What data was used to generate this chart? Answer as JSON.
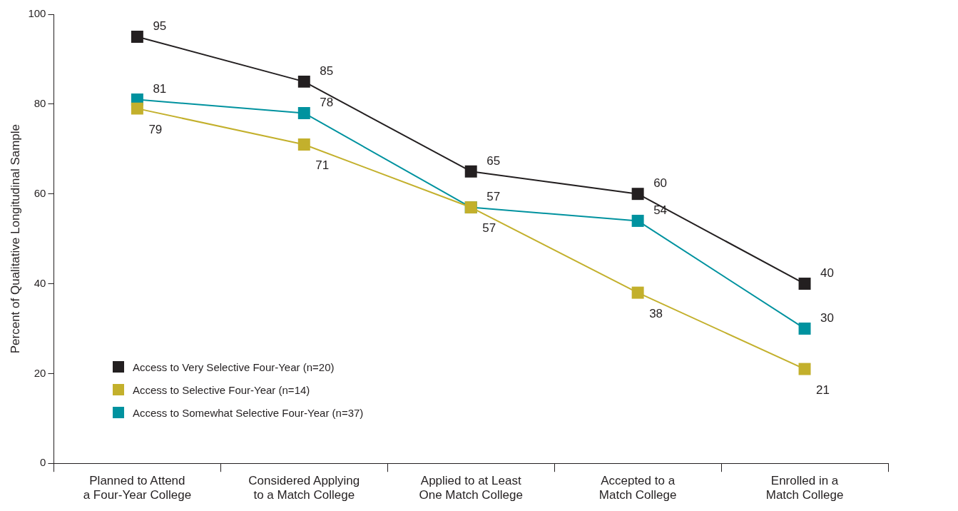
{
  "chart_data": {
    "type": "line",
    "ylabel": "Percent of Qualitative Longitudinal Sample",
    "categories": [
      "Planned to Attend a Four-Year College",
      "Considered Applying to a Match College",
      "Applied to at Least One Match College",
      "Accepted to a Match College",
      "Enrolled in a Match College"
    ],
    "series": [
      {
        "name": "Access to Very Selective Four-Year (n=20)",
        "color": "#231f20",
        "values": [
          95,
          85,
          65,
          60,
          40
        ]
      },
      {
        "name": "Access to Selective Four-Year (n=14)",
        "color": "#c3b02c",
        "values": [
          79,
          71,
          57,
          38,
          21
        ]
      },
      {
        "name": "Access to Somewhat Selective Four-Year (n=37)",
        "color": "#00929f",
        "values": [
          81,
          78,
          57,
          54,
          30
        ]
      }
    ],
    "ylim": [
      0,
      100
    ],
    "yticks": [
      0,
      20,
      40,
      60,
      80,
      100
    ],
    "grid": false,
    "legend": "bottom left",
    "marker": "square",
    "line_style": "solid",
    "data_labels": true
  }
}
